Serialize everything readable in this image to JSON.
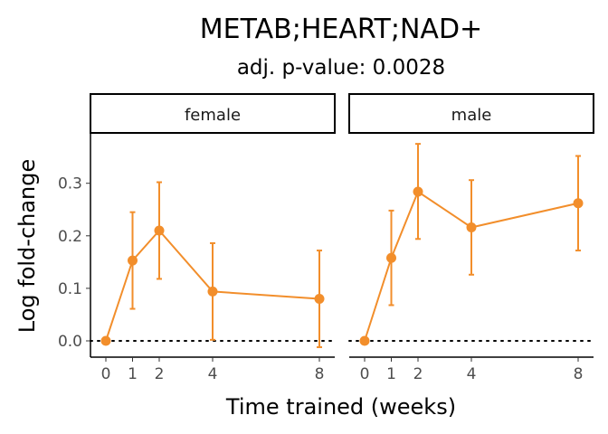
{
  "chart_data": {
    "type": "line",
    "title": "METAB;HEART;NAD+",
    "subtitle": "adj. p-value: 0.0028",
    "xlabel": "Time trained (weeks)",
    "ylabel": "Log fold-change",
    "x_ticks": [
      0,
      1,
      2,
      4,
      8
    ],
    "y_ticks": [
      0.0,
      0.1,
      0.2,
      0.3
    ],
    "y_tick_labels": [
      "0.0",
      "0.1",
      "0.2",
      "0.3"
    ],
    "xlim": [
      -0.4,
      8.4
    ],
    "ylim": [
      -0.03,
      0.39
    ],
    "reference_line": 0,
    "grid": false,
    "color": "#F28E2B",
    "panels": [
      {
        "label": "female",
        "x": [
          0,
          1,
          2,
          4,
          8
        ],
        "y": [
          0.0,
          0.153,
          0.21,
          0.094,
          0.08
        ],
        "lower": [
          null,
          0.061,
          0.118,
          0.002,
          -0.012
        ],
        "upper": [
          null,
          0.245,
          0.302,
          0.186,
          0.172
        ]
      },
      {
        "label": "male",
        "x": [
          0,
          1,
          2,
          4,
          8
        ],
        "y": [
          0.0,
          0.158,
          0.284,
          0.216,
          0.262
        ],
        "lower": [
          null,
          0.068,
          0.194,
          0.126,
          0.172
        ],
        "upper": [
          null,
          0.248,
          0.375,
          0.306,
          0.352
        ]
      }
    ]
  }
}
